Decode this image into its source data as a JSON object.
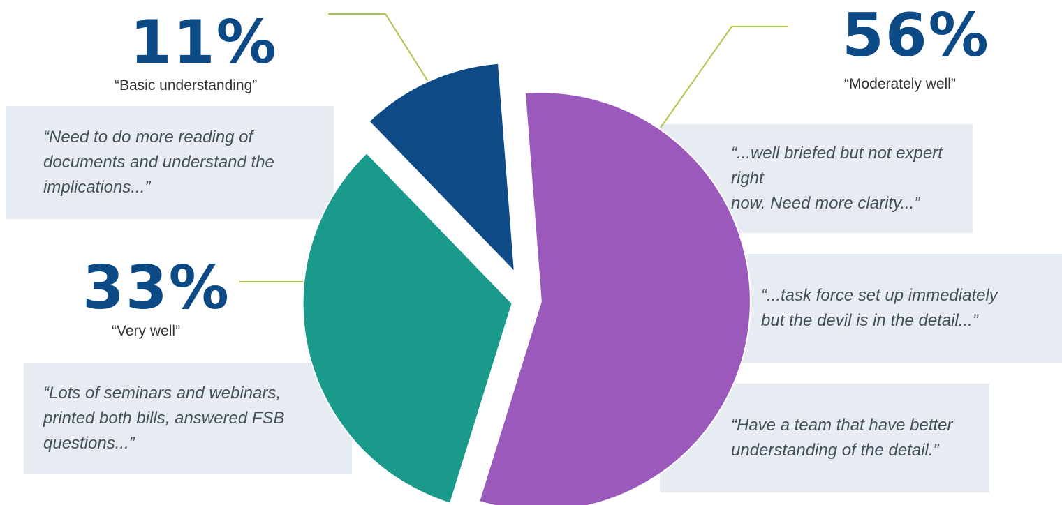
{
  "chart_data": {
    "type": "pie",
    "title": "",
    "legend": "none",
    "slices": [
      {
        "label": "“Basic understanding”",
        "value": 11,
        "value_label": "11%",
        "color": "#0e4a85"
      },
      {
        "label": "“Moderately well”",
        "value": 56,
        "value_label": "56%",
        "color": "#9c59bc"
      },
      {
        "label": "“Very well”",
        "value": 33,
        "value_label": "33%",
        "color": "#1a9a8b"
      }
    ],
    "leader_line_color": "#a8c84a",
    "quotes": [
      {
        "slice": "“Basic understanding”",
        "text": "“Need to do more reading of\ndocuments and understand the\nimplications...”"
      },
      {
        "slice": "“Very well”",
        "text": "“Lots of seminars and webinars,\nprinted both bills, answered FSB\nquestions...”"
      },
      {
        "slice": "“Moderately well”",
        "text": "“...well briefed but not expert right\nnow. Need more clarity...”"
      },
      {
        "slice": "“Moderately well”",
        "text": "“...task force set up immediately\nbut the devil is in the detail...”"
      },
      {
        "slice": "“Moderately well”",
        "text": "“Have a team that have better\nunderstanding of the detail.”"
      }
    ]
  }
}
